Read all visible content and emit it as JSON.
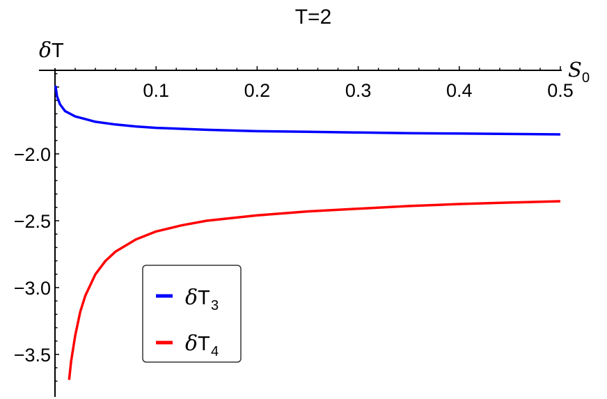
{
  "chart_data": {
    "type": "line",
    "title": "T=2",
    "xlabel": "S_0",
    "ylabel": "δT",
    "xlim": [
      0,
      0.5
    ],
    "ylim": [
      -3.75,
      -1.375
    ],
    "x_axis_crossing_y": -1.375,
    "x_ticks": [
      0.1,
      0.2,
      0.3,
      0.4,
      0.5
    ],
    "x_tick_labels": [
      "0.1",
      "0.2",
      "0.3",
      "0.4",
      "0.5"
    ],
    "y_ticks": [
      -2.0,
      -2.5,
      -3.0,
      -3.5
    ],
    "y_tick_labels": [
      "-2.0",
      "-2.5",
      "-3.0",
      "-3.5"
    ],
    "grid": false,
    "legend_position": "lower-left inside",
    "series": [
      {
        "name": "δT3",
        "legend_base": "δT",
        "legend_sub": "3",
        "color": "#0000ff",
        "x": [
          0.0005,
          0.002,
          0.005,
          0.01,
          0.02,
          0.04,
          0.06,
          0.08,
          0.1,
          0.15,
          0.2,
          0.25,
          0.3,
          0.35,
          0.4,
          0.45,
          0.5
        ],
        "y": [
          -1.49,
          -1.57,
          -1.63,
          -1.68,
          -1.72,
          -1.76,
          -1.78,
          -1.795,
          -1.805,
          -1.82,
          -1.83,
          -1.835,
          -1.84,
          -1.845,
          -1.848,
          -1.851,
          -1.854
        ]
      },
      {
        "name": "δT4",
        "legend_base": "δT",
        "legend_sub": "4",
        "color": "#ff0000",
        "x": [
          0.014,
          0.016,
          0.02,
          0.025,
          0.03,
          0.04,
          0.05,
          0.06,
          0.08,
          0.1,
          0.125,
          0.15,
          0.2,
          0.25,
          0.3,
          0.35,
          0.4,
          0.45,
          0.5
        ],
        "y": [
          -3.69,
          -3.55,
          -3.36,
          -3.18,
          -3.06,
          -2.9,
          -2.8,
          -2.73,
          -2.64,
          -2.58,
          -2.535,
          -2.5,
          -2.46,
          -2.43,
          -2.41,
          -2.39,
          -2.375,
          -2.364,
          -2.354
        ]
      }
    ]
  },
  "colors": {
    "axis": "#000000",
    "legend_border": "#333333",
    "series_3": "#0000ff",
    "series_4": "#ff0000"
  }
}
